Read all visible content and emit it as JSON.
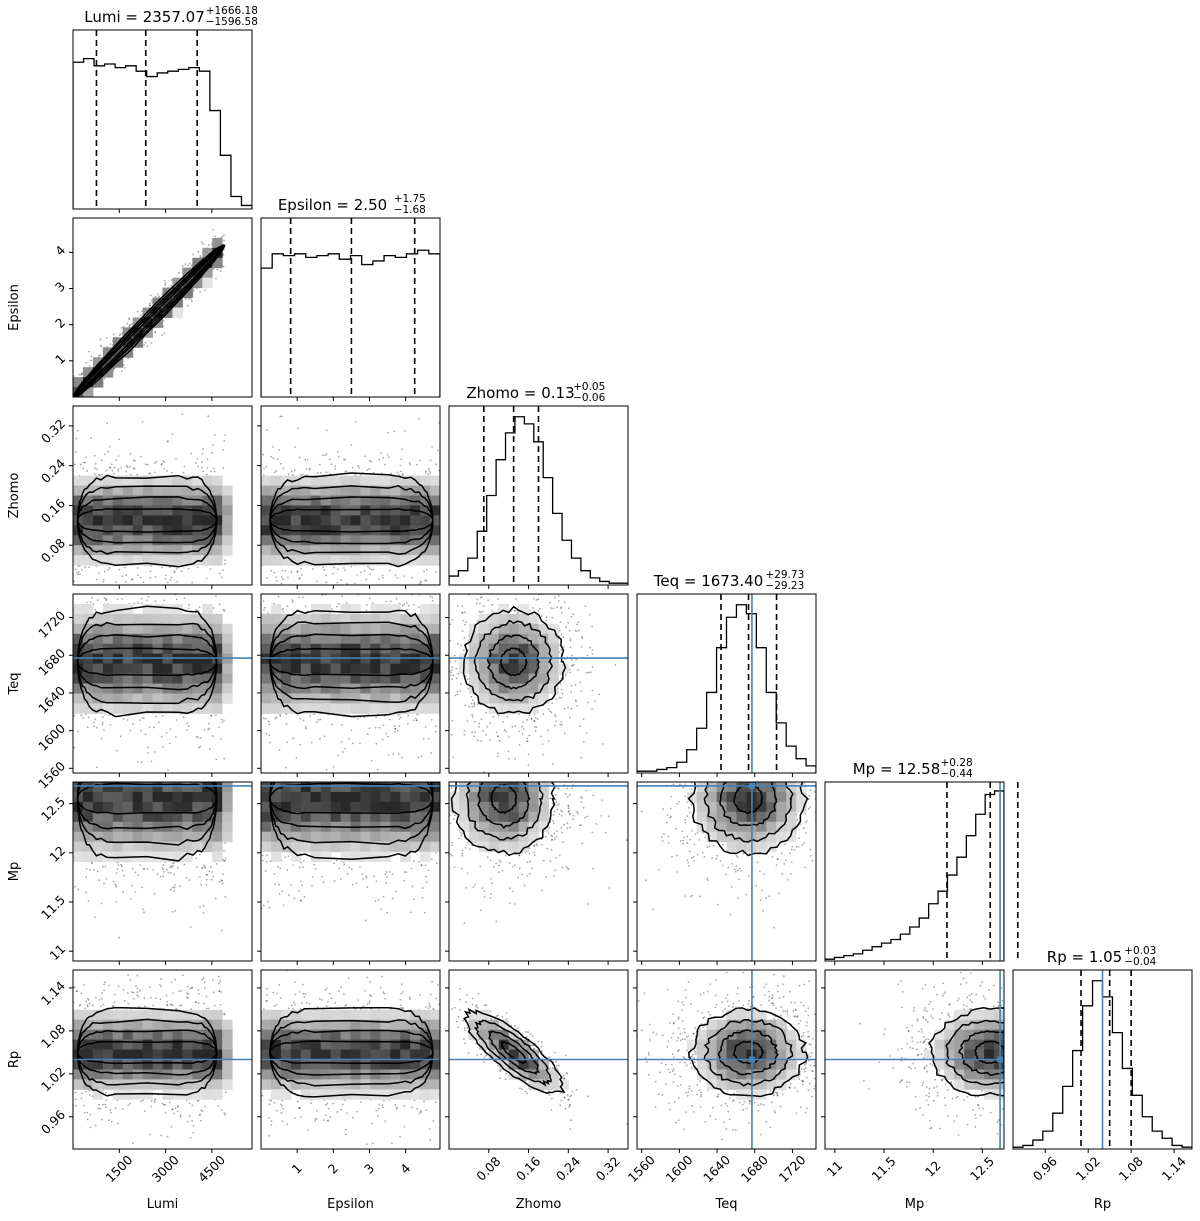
{
  "chart_data": {
    "type": "corner",
    "parameters": [
      {
        "name": "Lumi",
        "label": "Lumi",
        "range": [
          0,
          5800
        ],
        "ticks": [
          1500,
          3000,
          4500
        ],
        "title": {
          "text": "Lumi = 2357.07",
          "plus": "+1666.18",
          "minus": "−1596.58"
        },
        "quantiles": [
          760.49,
          2357.07,
          4023.25
        ],
        "truth": null,
        "hist": [
          0.82,
          0.84,
          0.8,
          0.81,
          0.79,
          0.8,
          0.77,
          0.74,
          0.76,
          0.77,
          0.78,
          0.79,
          0.77,
          0.55,
          0.3,
          0.07,
          0.02
        ]
      },
      {
        "name": "Epsilon",
        "label": "Epsilon",
        "range": [
          0.0,
          4.95
        ],
        "ticks": [
          1,
          2,
          3,
          4
        ],
        "title": {
          "text": "Epsilon = 2.50",
          "plus": "+1.75",
          "minus": "−1.68"
        },
        "quantiles": [
          0.82,
          2.5,
          4.25
        ],
        "truth": null,
        "hist": [
          0.72,
          0.8,
          0.79,
          0.8,
          0.78,
          0.79,
          0.8,
          0.77,
          0.79,
          0.74,
          0.76,
          0.79,
          0.78,
          0.8,
          0.82,
          0.8
        ]
      },
      {
        "name": "Zhomo",
        "label": "Zhomo",
        "range": [
          0.0,
          0.36
        ],
        "ticks": [
          0.08,
          0.16,
          0.24,
          0.32
        ],
        "title": {
          "text": "Zhomo = 0.13",
          "plus": "+0.05",
          "minus": "−0.06"
        },
        "quantiles": [
          0.07,
          0.13,
          0.18
        ],
        "truth": null,
        "hist": [
          0.05,
          0.08,
          0.15,
          0.3,
          0.5,
          0.7,
          0.85,
          0.94,
          0.9,
          0.8,
          0.6,
          0.4,
          0.25,
          0.15,
          0.08,
          0.04,
          0.02,
          0.01,
          0.01
        ]
      },
      {
        "name": "Teq",
        "label": "Teq",
        "range": [
          1555,
          1745
        ],
        "ticks": [
          1560,
          1600,
          1640,
          1680,
          1720
        ],
        "title": {
          "text": "Teq = 1673.40",
          "plus": "+29.73",
          "minus": "−29.23"
        },
        "quantiles": [
          1644.17,
          1673.4,
          1703.13
        ],
        "truth": 1677,
        "hist": [
          0.01,
          0.01,
          0.02,
          0.03,
          0.06,
          0.13,
          0.25,
          0.45,
          0.7,
          0.87,
          0.94,
          0.89,
          0.7,
          0.45,
          0.28,
          0.15,
          0.08,
          0.04
        ]
      },
      {
        "name": "Mp",
        "label": "Mp",
        "range": [
          10.9,
          12.72
        ],
        "ticks": [
          11.0,
          11.5,
          12.0,
          12.5
        ],
        "title": {
          "text": "Mp = 12.58",
          "plus": "+0.28",
          "minus": "−0.44"
        },
        "quantiles": [
          12.14,
          12.58,
          12.86
        ],
        "truth": 12.68,
        "hist": [
          0.01,
          0.02,
          0.03,
          0.04,
          0.06,
          0.08,
          0.1,
          0.12,
          0.15,
          0.19,
          0.24,
          0.32,
          0.39,
          0.48,
          0.58,
          0.7,
          0.82,
          0.93,
          0.95
        ]
      },
      {
        "name": "Rp",
        "label": "Rp",
        "range": [
          0.915,
          1.165
        ],
        "ticks": [
          0.96,
          1.02,
          1.08,
          1.14
        ],
        "title": {
          "text": "Rp = 1.05",
          "plus": "+0.03",
          "minus": "−0.04"
        },
        "quantiles": [
          1.01,
          1.05,
          1.08
        ],
        "truth": 1.04,
        "hist": [
          0.01,
          0.02,
          0.05,
          0.1,
          0.2,
          0.35,
          0.55,
          0.8,
          0.94,
          0.85,
          0.65,
          0.45,
          0.3,
          0.18,
          0.1,
          0.06,
          0.02,
          0.01
        ]
      }
    ],
    "pairs": [
      {
        "row": "Epsilon",
        "col": "Lumi",
        "shape": "linear",
        "center": [
          2400,
          2.5
        ],
        "spread": [
          1500,
          0.12
        ]
      },
      {
        "row": "Zhomo",
        "col": "Lumi",
        "shape": "band",
        "center": [
          2400,
          0.13
        ],
        "spread": [
          1500,
          0.045
        ]
      },
      {
        "row": "Zhomo",
        "col": "Epsilon",
        "shape": "band",
        "center": [
          2.5,
          0.13
        ],
        "spread": [
          1.5,
          0.045
        ]
      },
      {
        "row": "Zhomo",
        "col": "Teq",
        "shape": "blob",
        "center": [
          1673,
          0.13
        ],
        "spread": [
          30,
          0.05
        ]
      },
      {
        "row": "Teq",
        "col": "Lumi",
        "shape": "band",
        "center": [
          2400,
          1673
        ],
        "spread": [
          1500,
          28
        ]
      },
      {
        "row": "Teq",
        "col": "Epsilon",
        "shape": "band",
        "center": [
          2.5,
          1673
        ],
        "spread": [
          1.5,
          28
        ]
      },
      {
        "row": "Teq",
        "col": "Zhomo",
        "shape": "blob",
        "center": [
          0.13,
          1673
        ],
        "spread": [
          0.05,
          28
        ]
      },
      {
        "row": "Mp",
        "col": "Lumi",
        "shape": "band",
        "center": [
          2400,
          12.55
        ],
        "spread": [
          1500,
          0.3
        ]
      },
      {
        "row": "Mp",
        "col": "Epsilon",
        "shape": "band",
        "center": [
          2.5,
          12.55
        ],
        "spread": [
          1.5,
          0.3
        ]
      },
      {
        "row": "Mp",
        "col": "Zhomo",
        "shape": "blob",
        "center": [
          0.11,
          12.55
        ],
        "spread": [
          0.05,
          0.28
        ]
      },
      {
        "row": "Mp",
        "col": "Teq",
        "shape": "blob",
        "center": [
          1673,
          12.55
        ],
        "spread": [
          30,
          0.28
        ]
      },
      {
        "row": "Rp",
        "col": "Lumi",
        "shape": "band",
        "center": [
          2400,
          1.05
        ],
        "spread": [
          1500,
          0.03
        ]
      },
      {
        "row": "Rp",
        "col": "Epsilon",
        "shape": "band",
        "center": [
          2.5,
          1.05
        ],
        "spread": [
          1.5,
          0.03
        ]
      },
      {
        "row": "Rp",
        "col": "Zhomo",
        "shape": "anticorr",
        "center": [
          0.13,
          1.05
        ],
        "spread": [
          0.06,
          0.035
        ]
      },
      {
        "row": "Rp",
        "col": "Teq",
        "shape": "blob",
        "center": [
          1673,
          1.05
        ],
        "spread": [
          30,
          0.03
        ]
      },
      {
        "row": "Rp",
        "col": "Mp",
        "shape": "blob",
        "center": [
          12.58,
          1.05
        ],
        "spread": [
          0.3,
          0.03
        ]
      }
    ],
    "colors": {
      "truth_line": "#4682b4",
      "contour": "#000000",
      "hist_line": "#000000",
      "quantile_line": "#000000"
    },
    "grid": false
  }
}
